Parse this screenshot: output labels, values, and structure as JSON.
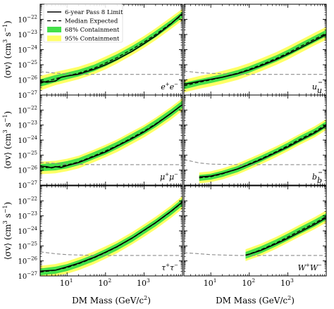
{
  "figure": {
    "ylabel_parts": [
      "⟨σv⟩ (cm",
      "3",
      " s",
      "−1",
      ")"
    ],
    "xlabel_parts": [
      "DM Mass (GeV/c",
      "2",
      ")"
    ]
  },
  "legend": {
    "items": [
      {
        "label": "6-year Pass 8 Limit",
        "style": "solid"
      },
      {
        "label": "Median Expected",
        "style": "dashed"
      },
      {
        "label": "68% Containment",
        "style": "band68"
      },
      {
        "label": "95% Containment",
        "style": "band95"
      }
    ]
  },
  "colors": {
    "limit": "#000000",
    "expected": "#000000",
    "band68": "#44e04a",
    "band95": "#ffff66",
    "thermal": "#8c8c8c",
    "frame": "#000000"
  },
  "axes": {
    "xscale": "log",
    "yscale": "log",
    "xlim": [
      2,
      10000
    ],
    "ylim": [
      1e-27,
      1e-21
    ],
    "xticks": [
      {
        "value": 10,
        "label": "10",
        "exp": "1"
      },
      {
        "value": 100,
        "label": "10",
        "exp": "2"
      },
      {
        "value": 1000,
        "label": "10",
        "exp": "3"
      }
    ],
    "yticks": [
      {
        "value": 1e-27,
        "label": "10",
        "exp": "−27"
      },
      {
        "value": 1e-26,
        "label": "10",
        "exp": "−26"
      },
      {
        "value": 1e-25,
        "label": "10",
        "exp": "−25"
      },
      {
        "value": 1e-24,
        "label": "10",
        "exp": "−24"
      },
      {
        "value": 1e-23,
        "label": "10",
        "exp": "−23"
      },
      {
        "value": 1e-22,
        "label": "10",
        "exp": "−22"
      }
    ]
  },
  "chart_data": [
    {
      "type": "line",
      "channel": "e+e-",
      "label_base": [
        "e",
        "e"
      ],
      "label_sup": [
        "+",
        "−"
      ],
      "thermal": {
        "x": [
          2,
          5,
          10,
          50,
          100,
          1000,
          10000
        ],
        "y": [
          3.5e-26,
          2.8e-26,
          2.5e-26,
          2.3e-26,
          2.3e-26,
          2.3e-26,
          2.3e-26
        ]
      },
      "series": [
        {
          "name": "6-year Pass 8 Limit",
          "x": [
            2,
            3,
            5,
            7,
            10,
            20,
            50,
            100,
            200,
            500,
            1000,
            2000,
            5000,
            10000
          ],
          "y": [
            8e-27,
            7e-27,
            8.5e-27,
            1.5e-26,
            1.8e-26,
            2.4e-26,
            5e-26,
            1e-25,
            2.3e-25,
            8e-25,
            2.5e-24,
            8e-24,
            5e-23,
            2.5e-22
          ]
        },
        {
          "name": "Median Expected",
          "x": [
            2,
            5,
            10,
            20,
            50,
            100,
            200,
            500,
            1000,
            2000,
            5000,
            10000
          ],
          "y": [
            6e-27,
            1.2e-26,
            1.8e-26,
            2.8e-26,
            6e-26,
            1.3e-25,
            3e-25,
            1.1e-24,
            3.2e-24,
            1e-23,
            5.5e-23,
            2e-22
          ]
        }
      ],
      "band68": {
        "x": [
          2,
          5,
          10,
          20,
          50,
          100,
          200,
          500,
          1000,
          2000,
          5000,
          10000
        ],
        "lower": [
          3.5e-27,
          7e-27,
          1.1e-26,
          1.7e-26,
          3.7e-26,
          8e-26,
          1.9e-25,
          7e-25,
          2e-24,
          6.5e-24,
          3.5e-23,
          1.3e-22
        ],
        "upper": [
          1.1e-26,
          2.1e-26,
          3.1e-26,
          4.7e-26,
          1e-25,
          2.2e-25,
          5e-25,
          1.8e-24,
          5.2e-24,
          1.7e-23,
          9e-23,
          3.3e-22
        ]
      },
      "band95": {
        "x": [
          2,
          5,
          10,
          20,
          50,
          100,
          200,
          500,
          1000,
          2000,
          5000,
          10000
        ],
        "lower": [
          2e-27,
          4.5e-27,
          7e-27,
          1.1e-26,
          2.4e-26,
          5e-26,
          1.2e-25,
          4.5e-25,
          1.3e-24,
          4.2e-24,
          2.3e-23,
          8.5e-23
        ],
        "upper": [
          1.8e-26,
          3.4e-26,
          5e-26,
          7.5e-26,
          1.6e-25,
          3.5e-25,
          8e-25,
          2.8e-24,
          8e-24,
          2.6e-23,
          1.4e-22,
          5e-22
        ]
      }
    },
    {
      "type": "line",
      "channel": "uū",
      "label_base": [
        "u",
        "u"
      ],
      "label_sup": [
        "",
        ""
      ],
      "thermal": {
        "x": [
          2,
          5,
          10,
          50,
          100,
          1000,
          10000
        ],
        "y": [
          3.8e-26,
          3e-26,
          2.7e-26,
          2.4e-26,
          2.3e-26,
          2.3e-26,
          2.3e-26
        ]
      },
      "series": [
        {
          "name": "6-year Pass 8 Limit",
          "x": [
            2,
            5,
            10,
            20,
            50,
            100,
            200,
            500,
            1000,
            2000,
            5000,
            10000
          ],
          "y": [
            5e-27,
            8e-27,
            1.1e-26,
            1.5e-26,
            2.6e-26,
            4.5e-26,
            8.5e-26,
            2.2e-25,
            5e-25,
            1.2e-24,
            4e-24,
            1e-23
          ]
        },
        {
          "name": "Median Expected",
          "x": [
            2,
            5,
            10,
            20,
            50,
            100,
            200,
            500,
            1000,
            2000,
            5000,
            10000
          ],
          "y": [
            4e-27,
            7e-27,
            1e-26,
            1.5e-26,
            2.8e-26,
            5e-26,
            1e-25,
            2.6e-25,
            6e-25,
            1.5e-24,
            5e-24,
            1.2e-23
          ]
        }
      ],
      "band68": {
        "x": [
          2,
          5,
          10,
          20,
          50,
          100,
          200,
          500,
          1000,
          2000,
          5000,
          10000
        ],
        "lower": [
          2.4e-27,
          4.3e-27,
          6.2e-27,
          9.2e-27,
          1.7e-26,
          3e-26,
          6.2e-26,
          1.6e-25,
          3.7e-25,
          9.2e-25,
          3e-24,
          7.4e-24
        ],
        "upper": [
          6.6e-27,
          1.1e-26,
          1.6e-26,
          2.4e-26,
          4.5e-26,
          8e-26,
          1.6e-25,
          4.2e-25,
          9.8e-25,
          2.5e-24,
          8.2e-24,
          2e-23
        ]
      },
      "band95": {
        "x": [
          2,
          5,
          10,
          20,
          50,
          100,
          200,
          500,
          1000,
          2000,
          5000,
          10000
        ],
        "lower": [
          1.5e-27,
          2.6e-27,
          3.7e-27,
          5.5e-27,
          1e-26,
          1.9e-26,
          3.7e-26,
          9.7e-26,
          2.2e-25,
          5.6e-25,
          1.9e-24,
          4.5e-24
        ],
        "upper": [
          1e-26,
          1.8e-26,
          2.6e-26,
          3.9e-26,
          7.3e-26,
          1.3e-25,
          2.6e-25,
          6.8e-25,
          1.6e-24,
          3.9e-24,
          1.3e-23,
          3.2e-23
        ]
      }
    },
    {
      "type": "line",
      "channel": "μ+μ-",
      "label_base": [
        "μ",
        "μ"
      ],
      "label_sup": [
        "+",
        "−"
      ],
      "thermal": {
        "x": [
          2,
          5,
          10,
          50,
          100,
          1000,
          10000
        ],
        "y": [
          3.2e-26,
          2.8e-26,
          2.5e-26,
          2.3e-26,
          2.3e-26,
          2.3e-26,
          2.3e-26
        ]
      },
      "series": [
        {
          "name": "6-year Pass 8 Limit",
          "x": [
            2,
            3,
            4,
            5,
            7,
            10,
            20,
            50,
            100,
            200,
            500,
            1000,
            2000,
            5000,
            10000
          ],
          "y": [
            1.8e-26,
            1.7e-26,
            1.4e-26,
            1.7e-26,
            1.5e-26,
            2e-26,
            3.2e-26,
            8e-26,
            1.6e-25,
            4e-25,
            1.3e-24,
            3.5e-24,
            1.1e-23,
            6e-23,
            2.3e-22
          ]
        },
        {
          "name": "Median Expected",
          "x": [
            2,
            5,
            10,
            20,
            50,
            100,
            200,
            500,
            1000,
            2000,
            5000,
            10000
          ],
          "y": [
            1.4e-26,
            1.6e-26,
            2.2e-26,
            3.5e-26,
            9e-26,
            1.9e-25,
            4.3e-25,
            1.5e-24,
            4e-24,
            1.2e-23,
            6e-23,
            2.4e-22
          ]
        }
      ],
      "band68": {
        "x": [
          2,
          5,
          10,
          20,
          50,
          100,
          200,
          500,
          1000,
          2000,
          5000,
          10000
        ],
        "lower": [
          8.4e-27,
          9.6e-27,
          1.3e-26,
          2.1e-26,
          5.4e-26,
          1.1e-25,
          2.6e-25,
          9e-25,
          2.4e-24,
          7.2e-24,
          3.6e-23,
          1.4e-22
        ],
        "upper": [
          2.5e-26,
          2.9e-26,
          4e-26,
          6.3e-26,
          1.6e-25,
          3.4e-25,
          7.7e-25,
          2.7e-24,
          7.2e-24,
          2.2e-23,
          1.1e-22,
          4.3e-22
        ]
      },
      "band95": {
        "x": [
          2,
          5,
          10,
          20,
          50,
          100,
          200,
          500,
          1000,
          2000,
          5000,
          10000
        ],
        "lower": [
          5.3e-27,
          6.1e-27,
          8.4e-27,
          1.3e-26,
          3.4e-26,
          7.2e-26,
          1.6e-25,
          5.7e-25,
          1.5e-24,
          4.6e-24,
          2.3e-23,
          9.1e-23
        ],
        "upper": [
          3.6e-26,
          4.2e-26,
          5.7e-26,
          9.1e-26,
          2.3e-25,
          4.9e-25,
          1.1e-24,
          3.9e-24,
          1e-23,
          3.1e-23,
          1.6e-22,
          6.2e-22
        ]
      }
    },
    {
      "type": "line",
      "channel": "bb̄",
      "label_base": [
        "b",
        "b"
      ],
      "label_sup": [
        "",
        ""
      ],
      "thermal": {
        "x": [
          2,
          5,
          10,
          50,
          100,
          1000,
          10000
        ],
        "y": [
          5e-26,
          3e-26,
          2.5e-26,
          2.3e-26,
          2.3e-26,
          2.3e-26,
          2.3e-26
        ]
      },
      "series": [
        {
          "name": "6-year Pass 8 Limit",
          "x": [
            5,
            10,
            20,
            50,
            100,
            200,
            500,
            1000,
            2000,
            5000,
            10000
          ],
          "y": [
            3.5e-27,
            4e-27,
            6e-27,
            1.2e-26,
            2.4e-26,
            5e-26,
            1.5e-25,
            3.5e-25,
            9e-25,
            3e-24,
            9e-24
          ]
        },
        {
          "name": "Median Expected",
          "x": [
            5,
            10,
            20,
            50,
            100,
            200,
            500,
            1000,
            2000,
            5000,
            10000
          ],
          "y": [
            3e-27,
            3.6e-27,
            5.6e-27,
            1.2e-26,
            2.6e-26,
            5.6e-26,
            1.7e-25,
            4.2e-25,
            1.1e-24,
            3.6e-24,
            1.1e-23
          ]
        }
      ],
      "band68": {
        "x": [
          5,
          10,
          20,
          50,
          100,
          200,
          500,
          1000,
          2000,
          5000,
          10000
        ],
        "lower": [
          1.9e-27,
          2.3e-27,
          3.5e-27,
          7.4e-27,
          1.6e-26,
          3.5e-26,
          1.1e-25,
          2.6e-25,
          6.8e-25,
          2.2e-24,
          6.8e-24
        ],
        "upper": [
          4.7e-27,
          5.8e-27,
          9e-27,
          1.9e-26,
          4.2e-26,
          9e-26,
          2.7e-25,
          6.7e-25,
          1.8e-24,
          5.8e-24,
          1.8e-23
        ]
      },
      "band95": {
        "x": [
          5,
          10,
          20,
          50,
          100,
          200,
          500,
          1000,
          2000,
          5000,
          10000
        ],
        "lower": [
          1.3e-27,
          1.6e-27,
          2.4e-27,
          5.2e-27,
          1.1e-26,
          2.4e-26,
          7.3e-26,
          1.8e-25,
          4.7e-25,
          1.5e-24,
          4.7e-24
        ],
        "upper": [
          6.9e-27,
          8.3e-27,
          1.3e-26,
          2.8e-26,
          6e-26,
          1.3e-25,
          3.9e-25,
          9.6e-25,
          2.5e-24,
          8.3e-24,
          2.5e-23
        ]
      }
    },
    {
      "type": "line",
      "channel": "τ+τ-",
      "label_base": [
        "τ",
        "τ"
      ],
      "label_sup": [
        "+",
        "−"
      ],
      "thermal": {
        "x": [
          2,
          5,
          10,
          50,
          100,
          1000,
          10000
        ],
        "y": [
          4e-26,
          3e-26,
          2.6e-26,
          2.3e-26,
          2.3e-26,
          2.3e-26,
          2.3e-26
        ]
      },
      "series": [
        {
          "name": "6-year Pass 8 Limit",
          "x": [
            2,
            5,
            10,
            20,
            50,
            100,
            200,
            500,
            1000,
            2000,
            5000,
            10000
          ],
          "y": [
            2.1e-27,
            2.4e-27,
            4e-27,
            7e-27,
            1.7e-26,
            3.8e-26,
            9e-26,
            3.4e-25,
            1.1e-24,
            3.5e-24,
            2e-23,
            8.5e-23
          ]
        },
        {
          "name": "Median Expected",
          "x": [
            2,
            5,
            10,
            20,
            50,
            100,
            200,
            500,
            1000,
            2000,
            5000,
            10000
          ],
          "y": [
            1.8e-27,
            2.4e-27,
            3.6e-27,
            6.4e-27,
            1.6e-26,
            3.6e-26,
            8.6e-26,
            3.3e-25,
            1.05e-24,
            3.4e-24,
            1.9e-23,
            8e-23
          ]
        }
      ],
      "band68": {
        "x": [
          2,
          5,
          10,
          20,
          50,
          100,
          200,
          500,
          1000,
          2000,
          5000,
          10000
        ],
        "lower": [
          1.1e-27,
          1.4e-27,
          2.1e-27,
          3.8e-27,
          9.4e-27,
          2.1e-26,
          5.1e-26,
          1.9e-25,
          6.2e-25,
          2e-24,
          1.1e-23,
          4.7e-23
        ],
        "upper": [
          3.1e-27,
          4.1e-27,
          6.1e-27,
          1.1e-26,
          2.7e-26,
          6.1e-26,
          1.5e-25,
          5.6e-25,
          1.8e-24,
          5.8e-24,
          3.2e-23,
          1.4e-22
        ]
      },
      "band95": {
        "x": [
          2,
          5,
          10,
          20,
          50,
          100,
          200,
          500,
          1000,
          2000,
          5000,
          10000
        ],
        "lower": [
          6.8e-28,
          9.1e-28,
          1.4e-27,
          2.4e-27,
          6.1e-27,
          1.4e-26,
          3.3e-26,
          1.3e-25,
          4e-25,
          1.3e-24,
          7.2e-24,
          3e-23
        ],
        "upper": [
          4.7e-27,
          6.2e-27,
          9.4e-27,
          1.7e-26,
          4.2e-26,
          9.4e-26,
          2.2e-25,
          8.6e-25,
          2.7e-24,
          8.8e-24,
          4.9e-23,
          2.1e-22
        ]
      }
    },
    {
      "type": "line",
      "channel": "W+W-",
      "label_base": [
        "W",
        "W"
      ],
      "label_sup": [
        "+",
        "−"
      ],
      "thermal": {
        "x": [
          2,
          5,
          10,
          50,
          100,
          1000,
          10000
        ],
        "y": [
          3.5e-26,
          3e-26,
          2.6e-26,
          2.3e-26,
          2.3e-26,
          2.3e-26,
          2.3e-26
        ]
      },
      "series": [
        {
          "name": "6-year Pass 8 Limit",
          "x": [
            80,
            100,
            200,
            500,
            1000,
            2000,
            5000,
            10000
          ],
          "y": [
            2.4e-26,
            2.8e-26,
            5e-26,
            1.4e-25,
            3.2e-25,
            8e-25,
            2.7e-24,
            7.5e-24
          ]
        },
        {
          "name": "Median Expected",
          "x": [
            80,
            100,
            200,
            500,
            1000,
            2000,
            5000,
            10000
          ],
          "y": [
            2.4e-26,
            2.9e-26,
            5.5e-26,
            1.6e-25,
            3.9e-25,
            1e-24,
            3.3e-24,
            9e-24
          ]
        }
      ],
      "band68": {
        "x": [
          80,
          100,
          200,
          500,
          1000,
          2000,
          5000,
          10000
        ],
        "lower": [
          1.4e-26,
          1.7e-26,
          3.2e-26,
          9.4e-26,
          2.3e-25,
          5.9e-25,
          1.9e-24,
          5.3e-24
        ],
        "upper": [
          4e-26,
          4.9e-26,
          9.4e-26,
          2.7e-25,
          6.6e-25,
          1.7e-24,
          5.6e-24,
          1.5e-23
        ]
      },
      "band95": {
        "x": [
          80,
          100,
          200,
          500,
          1000,
          2000,
          5000,
          10000
        ],
        "lower": [
          9.6e-27,
          1.2e-26,
          2.2e-26,
          6.4e-26,
          1.6e-25,
          4e-25,
          1.3e-24,
          3.6e-24
        ],
        "upper": [
          6e-26,
          7.3e-26,
          1.4e-25,
          4e-25,
          9.8e-25,
          2.5e-24,
          8.3e-24,
          2.3e-23
        ]
      }
    }
  ]
}
